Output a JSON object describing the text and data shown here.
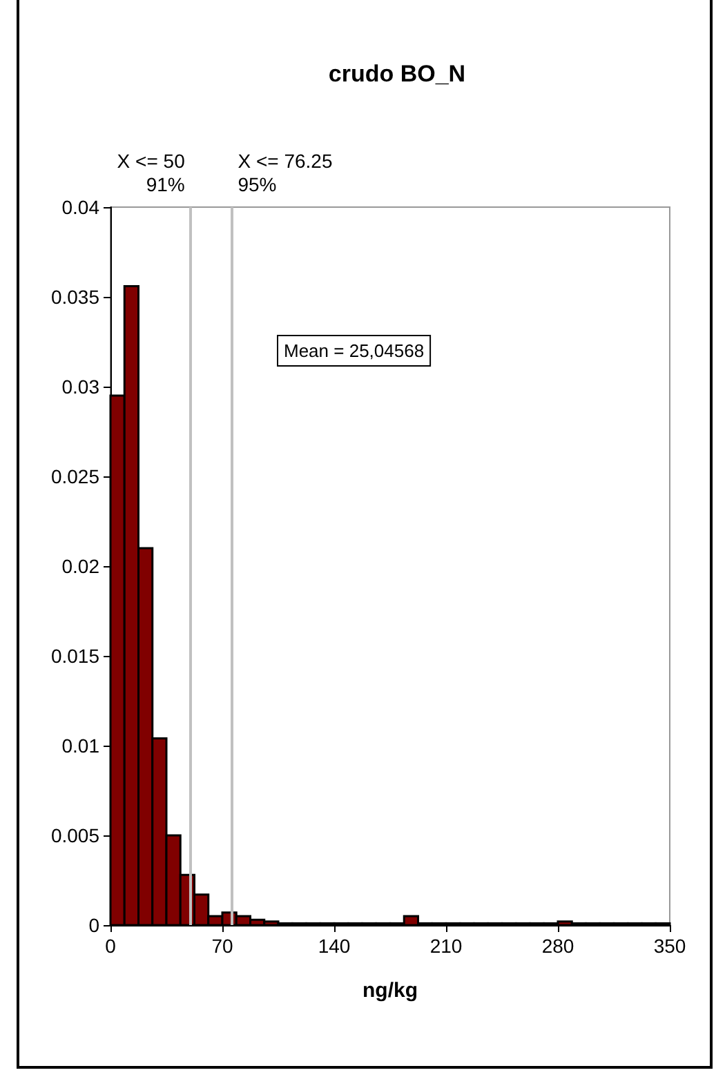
{
  "chart_data": {
    "type": "histogram",
    "title": "crudo BO_N",
    "xlabel": "ng/kg",
    "bins": [
      0,
      8.75,
      17.5,
      26.25,
      35,
      43.75,
      52.5,
      61.25,
      70,
      78.75,
      87.5,
      96.25,
      105,
      113.75,
      122.5,
      131.25,
      140,
      148.75,
      157.5,
      166.25,
      175,
      183.75,
      192.5,
      201.25,
      210,
      218.75,
      227.5,
      236.25,
      245,
      253.75,
      262.5,
      271.25,
      280,
      288.75,
      297.5,
      306.25,
      315,
      323.75,
      332.5,
      341.25,
      350
    ],
    "values": [
      0.0295,
      0.0356,
      0.021,
      0.0104,
      0.005,
      0.0028,
      0.0017,
      0.0005,
      0.0007,
      0.0005,
      0.0003,
      0.0002,
      0.0001,
      0.0001,
      0.0001,
      0.0001,
      0.0001,
      0.0001,
      0.0001,
      0.0001,
      0.0001,
      0.0005,
      0.0001,
      0.0001,
      0.0001,
      0.0001,
      0.0001,
      0.0001,
      0.0001,
      0.0001,
      0.0001,
      0.0001,
      0.0002,
      0.0001,
      0.0001,
      0.0001,
      0.0001,
      0.0001,
      0.0001,
      0.0001
    ],
    "color": "#800000",
    "xlim": [
      0,
      350
    ],
    "xticks": [
      0,
      70,
      140,
      210,
      280,
      350
    ],
    "ylim": [
      0,
      0.04
    ],
    "yticks": [
      0,
      0.005,
      0.01,
      0.015,
      0.02,
      0.025,
      0.03,
      0.035,
      0.04
    ],
    "ref_lines": [
      {
        "axis": "x",
        "value": 50,
        "label": "X <= 50\n91%",
        "color": "#c0c0c0"
      },
      {
        "axis": "x",
        "value": 76.25,
        "label": "X <= 76.25\n95%",
        "color": "#c0c0c0"
      }
    ],
    "annotations": [
      "Mean = 25,04568"
    ],
    "grid": false
  }
}
